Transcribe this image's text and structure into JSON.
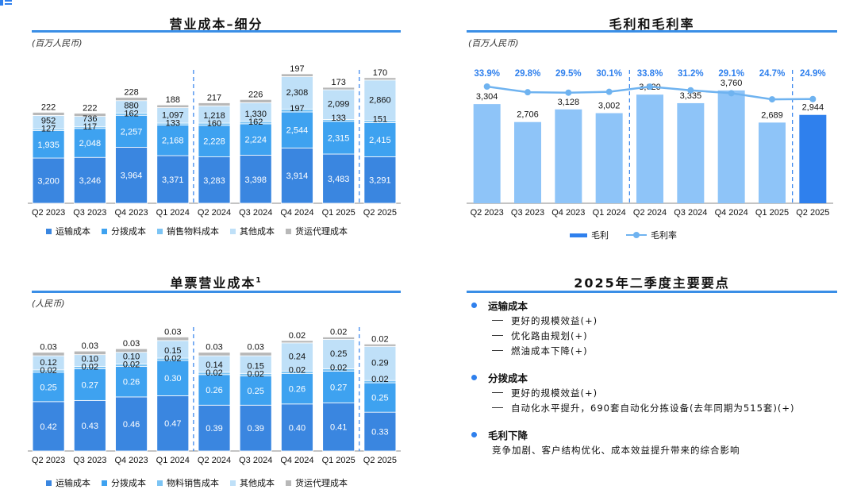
{
  "colors": {
    "transport": "#3a86e0",
    "sorting": "#3ea2f0",
    "materials": "#7cc4f4",
    "other": "#bfe0f8",
    "agency": "#b8b8b8",
    "gross_profit": "#8ec4f8",
    "gross_profit_highlight": "#2f80ed",
    "margin_line": "#6fb3f0",
    "accent": "#3a8ee6"
  },
  "panels": {
    "cost_breakdown": {
      "title": "营业成本–细分",
      "unit": "(百万人民币)"
    },
    "gross_profit": {
      "title": "毛利和毛利率",
      "unit": "(百万人民币)"
    },
    "unit_cost": {
      "title": "单票营业成本",
      "title_sup": "1",
      "unit": "(人民币)"
    },
    "highlights": {
      "title": "2025年二季度主要要点"
    }
  },
  "legends": {
    "cost_breakdown": [
      {
        "label": "运输成本",
        "color_key": "transport"
      },
      {
        "label": "分拨成本",
        "color_key": "sorting"
      },
      {
        "label": "销售物料成本",
        "color_key": "materials"
      },
      {
        "label": "其他成本",
        "color_key": "other"
      },
      {
        "label": "货运代理成本",
        "color_key": "agency"
      }
    ],
    "gross_profit": [
      {
        "label": "毛利",
        "kind": "bar"
      },
      {
        "label": "毛利率",
        "kind": "line"
      }
    ],
    "unit_cost": [
      {
        "label": "运输成本",
        "color_key": "transport"
      },
      {
        "label": "分拨成本",
        "color_key": "sorting"
      },
      {
        "label": "物料销售成本",
        "color_key": "materials"
      },
      {
        "label": "其他成本",
        "color_key": "other"
      },
      {
        "label": "货运代理成本",
        "color_key": "agency"
      }
    ]
  },
  "highlights": [
    {
      "title": "运输成本",
      "items": [
        "更好的规模效益(+)",
        "优化路由规划(+)",
        "燃油成本下降(+)"
      ]
    },
    {
      "title": "分拨成本",
      "items": [
        "更好的规模效益(+)",
        "自动化水平提升，690套自动化分拣设备(去年同期为515套)(+)"
      ]
    },
    {
      "title": "毛利下降",
      "text": "竞争加剧、客户结构优化、成本效益提升带来的综合影响"
    }
  ],
  "chart_data": [
    {
      "type": "bar",
      "stacked": true,
      "title": "营业成本–细分",
      "ylabel": "(百万人民币)",
      "categories": [
        "Q2 2023",
        "Q3 2023",
        "Q4 2023",
        "Q1 2024",
        "Q2 2024",
        "Q3 2024",
        "Q4 2024",
        "Q1 2025",
        "Q2 2025"
      ],
      "separators_after": [
        3,
        7
      ],
      "series": [
        {
          "name": "运输成本",
          "values": [
            3200,
            3246,
            3964,
            3371,
            3283,
            3398,
            3914,
            3483,
            3291
          ],
          "labels": [
            "3,200",
            "3,246",
            "3,964",
            "3,371",
            "3,283",
            "3,398",
            "3,914",
            "3,483",
            "3,291"
          ]
        },
        {
          "name": "分拨成本",
          "values": [
            1935,
            2048,
            2257,
            2168,
            2228,
            2224,
            2544,
            2315,
            2415
          ],
          "labels": [
            "1,935",
            "2,048",
            "2,257",
            "2,168",
            "2,228",
            "2,224",
            "2,544",
            "2,315",
            "2,415"
          ]
        },
        {
          "name": "销售物料成本",
          "values": [
            127,
            117,
            162,
            133,
            160,
            162,
            197,
            133,
            151
          ],
          "labels": [
            "127",
            "117",
            "162",
            "133",
            "160",
            "162",
            "197",
            "133",
            "151"
          ]
        },
        {
          "name": "其他成本",
          "values": [
            952,
            736,
            880,
            1097,
            1218,
            1330,
            2308,
            2099,
            2860
          ],
          "labels": [
            "952",
            "736",
            "880",
            "1,097",
            "1,218",
            "1,330",
            "2,308",
            "2,099",
            "2,860"
          ]
        },
        {
          "name": "货运代理成本",
          "values": [
            222,
            222,
            228,
            188,
            217,
            226,
            197,
            173,
            170
          ],
          "labels": [
            "222",
            "222",
            "228",
            "188",
            "217",
            "226",
            "197",
            "173",
            "170"
          ]
        }
      ]
    },
    {
      "type": "bar",
      "title": "毛利和毛利率",
      "ylabel": "(百万人民币)",
      "categories": [
        "Q2 2023",
        "Q3 2023",
        "Q4 2023",
        "Q1 2024",
        "Q2 2024",
        "Q3 2024",
        "Q4 2024",
        "Q1 2025",
        "Q2 2025"
      ],
      "separators_after": [
        3,
        7
      ],
      "series": [
        {
          "name": "毛利",
          "values": [
            3304,
            2706,
            3128,
            3002,
            3620,
            3335,
            3760,
            2689,
            2944
          ],
          "labels": [
            "3,304",
            "2,706",
            "3,128",
            "3,002",
            "3,620",
            "3,335",
            "3,760",
            "2,689",
            "2,944"
          ]
        },
        {
          "name": "毛利率",
          "type": "line",
          "values": [
            33.9,
            29.8,
            29.5,
            30.1,
            33.8,
            31.2,
            29.1,
            24.7,
            24.9
          ],
          "labels": [
            "33.9%",
            "29.8%",
            "29.5%",
            "30.1%",
            "33.8%",
            "31.2%",
            "29.1%",
            "24.7%",
            "24.9%"
          ]
        }
      ]
    },
    {
      "type": "bar",
      "stacked": true,
      "title": "单票营业成本",
      "ylabel": "(人民币)",
      "categories": [
        "Q2 2023",
        "Q3 2023",
        "Q4 2023",
        "Q1 2024",
        "Q2 2024",
        "Q3 2024",
        "Q4 2024",
        "Q1 2025",
        "Q2 2025"
      ],
      "separators_after": [
        3,
        7
      ],
      "series": [
        {
          "name": "运输成本",
          "values": [
            0.42,
            0.43,
            0.46,
            0.47,
            0.39,
            0.39,
            0.4,
            0.41,
            0.33
          ],
          "labels": [
            "0.42",
            "0.43",
            "0.46",
            "0.47",
            "0.39",
            "0.39",
            "0.40",
            "0.41",
            "0.33"
          ]
        },
        {
          "name": "分拨成本",
          "values": [
            0.25,
            0.27,
            0.26,
            0.3,
            0.26,
            0.25,
            0.26,
            0.27,
            0.25
          ],
          "labels": [
            "0.25",
            "0.27",
            "0.26",
            "0.30",
            "0.26",
            "0.25",
            "0.26",
            "0.27",
            "0.25"
          ]
        },
        {
          "name": "物料销售成本",
          "values": [
            0.02,
            0.02,
            0.02,
            0.02,
            0.02,
            0.02,
            0.02,
            0.02,
            0.02
          ],
          "labels": [
            "0.02",
            "0.02",
            "0.02",
            "0.02",
            "0.02",
            "0.02",
            "0.02",
            "0.02",
            "0.02"
          ]
        },
        {
          "name": "其他成本",
          "values": [
            0.12,
            0.1,
            0.1,
            0.15,
            0.14,
            0.15,
            0.24,
            0.25,
            0.29
          ],
          "labels": [
            "0.12",
            "0.10",
            "0.10",
            "0.15",
            "0.14",
            "0.15",
            "0.24",
            "0.25",
            "0.29"
          ]
        },
        {
          "name": "货运代理成本",
          "values": [
            0.03,
            0.03,
            0.03,
            0.03,
            0.03,
            0.03,
            0.02,
            0.02,
            0.02
          ],
          "labels": [
            "0.03",
            "0.03",
            "0.03",
            "0.03",
            "0.03",
            "0.03",
            "0.02",
            "0.02",
            "0.02"
          ]
        }
      ]
    }
  ]
}
